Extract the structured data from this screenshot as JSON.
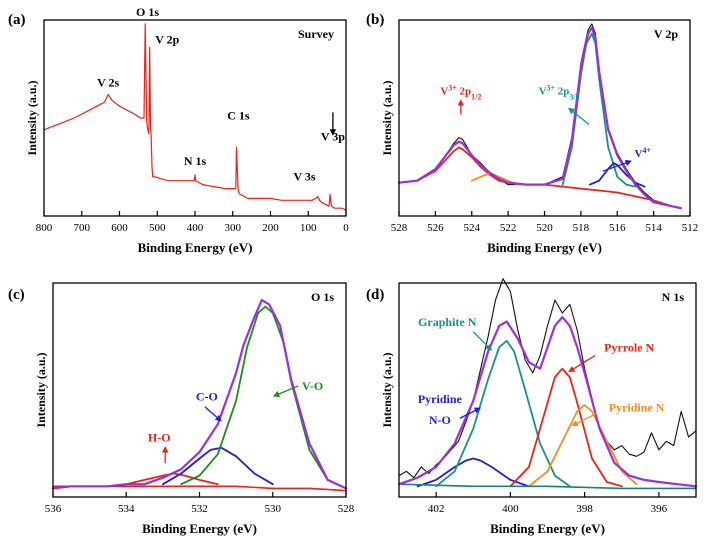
{
  "chart_data": [
    {
      "id": "a",
      "panel_label": "(a)",
      "type": "line",
      "title": "Survey",
      "xlabel": "Binding Energy (eV)",
      "ylabel": "Intensity (a.u.)",
      "xlim": [
        800,
        0
      ],
      "ylim": [
        0,
        100
      ],
      "x_ticks": [
        800,
        700,
        600,
        500,
        400,
        300,
        200,
        100,
        0
      ],
      "series": [
        {
          "name": "Survey",
          "color": "#e8231a",
          "x": [
            800,
            760,
            720,
            700,
            680,
            660,
            640,
            630,
            620,
            600,
            580,
            560,
            545,
            535,
            532,
            528,
            525,
            522,
            520,
            518,
            516,
            514,
            512,
            505,
            490,
            470,
            450,
            430,
            410,
            402,
            400,
            398,
            380,
            350,
            320,
            300,
            292,
            290,
            286,
            284,
            280,
            260,
            230,
            200,
            170,
            140,
            110,
            90,
            80,
            75,
            70,
            65,
            55,
            45,
            42,
            40,
            38,
            30,
            20,
            10,
            0
          ],
          "y": [
            44,
            47,
            50,
            52,
            54,
            56,
            58,
            62,
            59,
            56,
            54,
            52,
            50,
            50,
            98,
            48,
            44,
            42,
            86,
            46,
            40,
            25,
            20,
            20,
            19,
            18,
            18,
            18,
            18,
            18,
            21,
            18,
            16,
            15,
            14,
            14,
            14,
            35,
            14,
            12,
            11,
            9,
            9,
            9,
            8,
            8,
            8,
            8,
            9,
            10,
            8,
            7,
            6,
            5,
            11,
            7,
            5,
            4,
            4,
            4,
            3
          ]
        }
      ],
      "annotations": [
        {
          "text": "O 1s",
          "x": 531,
          "y": 98
        },
        {
          "text": "V 2p",
          "x": 516,
          "y": 86
        },
        {
          "text": "V 2s",
          "x": 630,
          "y": 62
        },
        {
          "text": "N 1s",
          "x": 400,
          "y": 21
        },
        {
          "text": "C 1s",
          "x": 285,
          "y": 35
        },
        {
          "text": "V 3s",
          "x": 70,
          "y": 10
        },
        {
          "text": "V 3p",
          "x": 40,
          "y": 11
        }
      ]
    },
    {
      "id": "b",
      "panel_label": "(b)",
      "type": "line",
      "title": "V 2p",
      "xlabel": "Binding Energy (eV)",
      "ylabel": "Intensity (a.u.)",
      "xlim": [
        528,
        512
      ],
      "ylim": [
        0,
        100
      ],
      "x_ticks": [
        528,
        526,
        524,
        522,
        520,
        518,
        516,
        514,
        512
      ],
      "series": [
        {
          "name": "Raw",
          "color": "#111111",
          "x": [
            528,
            527,
            526,
            525.5,
            525,
            524.7,
            524.5,
            524,
            523.5,
            523,
            522.5,
            522,
            521,
            520,
            519,
            518.5,
            518,
            517.6,
            517.4,
            517.2,
            517,
            516.5,
            516,
            515.5,
            515,
            514.5,
            514,
            513,
            512.5
          ],
          "y": [
            17,
            18,
            24,
            30,
            37,
            40,
            39,
            31,
            27,
            22,
            19,
            16,
            16,
            16,
            20,
            40,
            78,
            95,
            98,
            93,
            75,
            45,
            32,
            24,
            17,
            12,
            8,
            5,
            4
          ]
        },
        {
          "name": "V3+ 2p1/2",
          "color": "#e8231a",
          "x": [
            528,
            527,
            526,
            525.5,
            525,
            524.7,
            524.5,
            524,
            523.5,
            523,
            522.5,
            522,
            521,
            520,
            519,
            518,
            517,
            516,
            515,
            514,
            513,
            512.5
          ],
          "y": [
            17,
            18,
            23,
            28,
            33,
            35,
            34,
            30,
            25,
            21,
            18,
            17,
            16,
            16,
            15,
            14,
            13,
            12,
            10,
            8,
            5,
            4
          ]
        },
        {
          "name": "V3+ 2p3/2",
          "color": "#17928a",
          "x": [
            519,
            518.5,
            518,
            517.7,
            517.4,
            517.2,
            517,
            516.5,
            516,
            515.5,
            515
          ],
          "y": [
            16,
            35,
            72,
            88,
            93,
            88,
            70,
            35,
            20,
            16,
            15
          ]
        },
        {
          "name": "V4+",
          "color": "#1f1fd1",
          "x": [
            517.5,
            517,
            516.5,
            516.2,
            516,
            515.5,
            515,
            514.5
          ],
          "y": [
            16,
            18,
            24,
            27,
            26,
            21,
            17,
            15
          ]
        },
        {
          "name": "shoulder",
          "color": "#f18f1b",
          "x": [
            524,
            523.5,
            523,
            522.5,
            522,
            521.5
          ],
          "y": [
            18,
            20,
            22,
            20,
            18,
            16
          ]
        },
        {
          "name": "Fit envelope",
          "color": "#9b30d9",
          "x": [
            528,
            527,
            526,
            525.5,
            525,
            524.7,
            524.5,
            524,
            523.5,
            523,
            522.5,
            522,
            521,
            520,
            519,
            518.5,
            518,
            517.6,
            517.4,
            517.2,
            517,
            516.5,
            516,
            515.5,
            515,
            514.5,
            514,
            513,
            512.5
          ],
          "y": [
            17,
            18,
            24,
            30,
            36,
            38,
            37,
            31,
            26,
            22,
            19,
            17,
            16,
            16,
            19,
            38,
            76,
            93,
            96,
            91,
            74,
            44,
            31,
            23,
            16,
            11,
            7,
            5,
            4
          ]
        }
      ],
      "annotations": [
        {
          "text": "V³⁺ 2p₁/₂",
          "x": 524.6,
          "y": 62
        },
        {
          "text": "V³⁺ 2p₃/₂",
          "x": 519.2,
          "y": 62
        },
        {
          "text": "V⁴⁺",
          "x": 514.6,
          "y": 30
        }
      ]
    },
    {
      "id": "c",
      "panel_label": "(c)",
      "type": "line",
      "title": "O 1s",
      "xlabel": "Binding Energy (eV)",
      "ylabel": "Intensity (a.u.)",
      "xlim": [
        536,
        528
      ],
      "ylim": [
        0,
        100
      ],
      "x_ticks": [
        536,
        534,
        532,
        530,
        528
      ],
      "series": [
        {
          "name": "Raw",
          "color": "#111111",
          "x": [
            536,
            535.5,
            535,
            534.5,
            534,
            533.5,
            533,
            532.5,
            532,
            531.5,
            531,
            530.8,
            530.5,
            530.3,
            530.1,
            529.8,
            529.5,
            529,
            528.5,
            528
          ],
          "y": [
            4,
            5,
            5,
            5,
            6,
            6,
            9,
            13,
            21,
            34,
            58,
            71,
            84,
            92,
            90,
            80,
            55,
            25,
            8,
            4
          ]
        },
        {
          "name": "H-O",
          "color": "#e8231a",
          "x": [
            534.5,
            534,
            533.5,
            533,
            532.7,
            532.4,
            532,
            531.5
          ],
          "y": [
            5,
            6,
            8,
            10,
            11,
            10,
            8,
            6
          ]
        },
        {
          "name": "C-O",
          "color": "#1f1fd1",
          "x": [
            533,
            532.5,
            532,
            531.7,
            531.4,
            531,
            530.5,
            530
          ],
          "y": [
            6,
            11,
            18,
            22,
            23,
            19,
            11,
            6
          ]
        },
        {
          "name": "V-O",
          "color": "#1e8a1e",
          "x": [
            532.5,
            532,
            531.5,
            531,
            530.7,
            530.4,
            530.2,
            530,
            529.7,
            529.5,
            529,
            528.5
          ],
          "y": [
            6,
            10,
            20,
            45,
            70,
            86,
            89,
            86,
            72,
            54,
            22,
            8
          ]
        },
        {
          "name": "Baseline",
          "color": "#e8231a",
          "x": [
            536,
            535,
            534,
            533,
            532,
            531,
            530,
            529,
            528
          ],
          "y": [
            5,
            5,
            5,
            5,
            5,
            5,
            4,
            4,
            3
          ]
        },
        {
          "name": "Fit envelope",
          "color": "#9b30d9",
          "x": [
            536,
            535.5,
            535,
            534.5,
            534,
            533.5,
            533,
            532.5,
            532,
            531.5,
            531,
            530.8,
            530.5,
            530.3,
            530.1,
            529.8,
            529.5,
            529,
            528.5,
            528
          ],
          "y": [
            4,
            5,
            5,
            5,
            6,
            6,
            9,
            13,
            21,
            34,
            58,
            71,
            84,
            92,
            90,
            80,
            55,
            25,
            8,
            4
          ]
        }
      ],
      "annotations": [
        {
          "text": "H-O",
          "x": 533.1,
          "y": 26
        },
        {
          "text": "C-O",
          "x": 531.8,
          "y": 45
        },
        {
          "text": "V-O",
          "x": 529.2,
          "y": 50
        }
      ]
    },
    {
      "id": "d",
      "panel_label": "(d)",
      "type": "line",
      "title": "N 1s",
      "xlabel": "Binding Energy (eV)",
      "ylabel": "Intensity (a.u.)",
      "xlim": [
        403,
        395
      ],
      "ylim": [
        0,
        100
      ],
      "x_ticks": [
        402,
        400,
        398,
        396
      ],
      "series": [
        {
          "name": "Raw",
          "color": "#111111",
          "x": [
            403,
            402.8,
            402.6,
            402.4,
            402.2,
            402,
            401.8,
            401.6,
            401.4,
            401.2,
            401,
            400.8,
            400.6,
            400.4,
            400.2,
            400,
            399.8,
            399.6,
            399.4,
            399.2,
            399,
            398.8,
            398.6,
            398.4,
            398.2,
            398,
            397.8,
            397.6,
            397.4,
            397.2,
            397,
            396.8,
            396.6,
            396.4,
            396.2,
            396,
            395.8,
            395.6,
            395.4,
            395.2,
            395
          ],
          "y": [
            10,
            12,
            9,
            14,
            11,
            15,
            18,
            22,
            26,
            35,
            45,
            60,
            75,
            92,
            102,
            96,
            78,
            64,
            58,
            66,
            80,
            92,
            86,
            90,
            78,
            60,
            46,
            32,
            26,
            22,
            24,
            20,
            19,
            21,
            30,
            22,
            26,
            24,
            40,
            28,
            31
          ]
        },
        {
          "name": "Pyridine N-O",
          "color": "#1f1fd1",
          "x": [
            402.5,
            402,
            401.5,
            401.2,
            401,
            400.8,
            400.5,
            400,
            399.5
          ],
          "y": [
            5,
            8,
            14,
            17,
            18,
            17,
            14,
            8,
            5
          ]
        },
        {
          "name": "Graphite N",
          "color": "#17928a",
          "x": [
            402,
            401.5,
            401,
            400.6,
            400.3,
            400.1,
            399.9,
            399.6,
            399.2,
            398.8,
            398.4
          ],
          "y": [
            5,
            12,
            32,
            55,
            70,
            73,
            68,
            50,
            25,
            10,
            5
          ]
        },
        {
          "name": "Pyrrole N",
          "color": "#e8231a",
          "x": [
            400,
            399.5,
            399.1,
            398.8,
            398.6,
            398.4,
            398.2,
            397.8,
            397.4,
            397
          ],
          "y": [
            5,
            14,
            38,
            56,
            60,
            56,
            44,
            18,
            7,
            5
          ]
        },
        {
          "name": "Pyridine N",
          "color": "#f18f1b",
          "x": [
            399.5,
            399,
            398.6,
            398.2,
            398,
            397.8,
            397.4,
            397,
            396.6
          ],
          "y": [
            5,
            12,
            26,
            40,
            43,
            40,
            26,
            12,
            6
          ]
        },
        {
          "name": "Baseline",
          "color": "#1b7f7a",
          "x": [
            403,
            401,
            399,
            397,
            395
          ],
          "y": [
            6,
            5,
            5,
            4,
            4
          ]
        },
        {
          "name": "Fit envelope",
          "color": "#9b30d9",
          "x": [
            403,
            402.5,
            402,
            401.5,
            401,
            400.6,
            400.3,
            400.1,
            399.8,
            399.5,
            399.2,
            399,
            398.8,
            398.6,
            398.4,
            398.2,
            398,
            397.6,
            397.2,
            396.8,
            396.4,
            396,
            395.5,
            395
          ],
          "y": [
            6,
            9,
            14,
            25,
            45,
            68,
            80,
            82,
            74,
            63,
            60,
            70,
            80,
            84,
            80,
            70,
            58,
            32,
            16,
            10,
            8,
            7,
            6,
            5
          ]
        }
      ],
      "annotations": [
        {
          "text": "Graphite N",
          "x": 401.7,
          "y": 80
        },
        {
          "text": "Pyrrole N",
          "x": 396.8,
          "y": 68
        },
        {
          "text": "Pyridine",
          "x": 401.9,
          "y": 44
        },
        {
          "text": "N-O",
          "x": 401.9,
          "y": 34
        },
        {
          "text": "Pyridine N",
          "x": 396.6,
          "y": 40
        }
      ]
    }
  ]
}
